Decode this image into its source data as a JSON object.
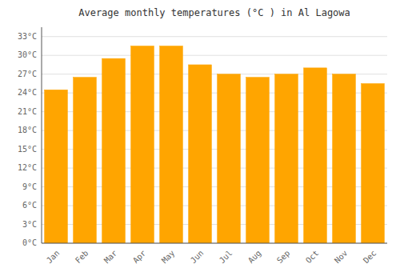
{
  "chart_data": {
    "type": "bar",
    "title": "Average monthly temperatures (°C ) in Al Lagowa",
    "categories": [
      "Jan",
      "Feb",
      "Mar",
      "Apr",
      "May",
      "Jun",
      "Jul",
      "Aug",
      "Sep",
      "Oct",
      "Nov",
      "Dec"
    ],
    "values": [
      24.5,
      26.5,
      29.5,
      31.5,
      31.5,
      28.5,
      27.0,
      26.5,
      27.0,
      28.0,
      27.0,
      25.5
    ],
    "color": "#FFA500",
    "ylim": [
      0,
      34.5
    ],
    "yticks": [
      {
        "value": 0,
        "label": "0°C"
      },
      {
        "value": 3,
        "label": "3°C"
      },
      {
        "value": 6,
        "label": "6°C"
      },
      {
        "value": 9,
        "label": "9°C"
      },
      {
        "value": 12,
        "label": "12°C"
      },
      {
        "value": 15,
        "label": "15°C"
      },
      {
        "value": 18,
        "label": "18°C"
      },
      {
        "value": 21,
        "label": "21°C"
      },
      {
        "value": 24,
        "label": "24°C"
      },
      {
        "value": 27,
        "label": "27°C"
      },
      {
        "value": 30,
        "label": "30°C"
      },
      {
        "value": 33,
        "label": "33°C"
      }
    ],
    "grid": true
  }
}
